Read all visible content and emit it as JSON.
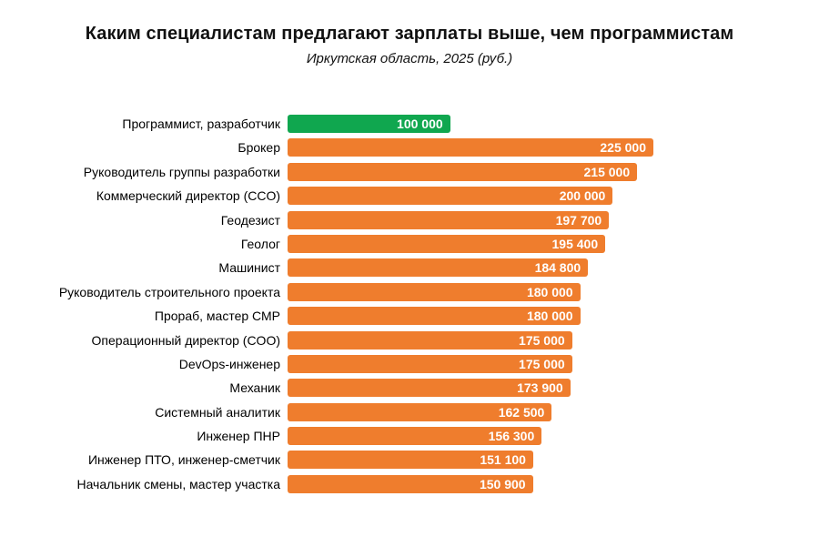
{
  "title": "Каким специалистам предлагают зарплаты выше, чем программистам",
  "subtitle": "Иркутская область, 2025 (руб.)",
  "colors": {
    "highlight_bar": "#10A74F",
    "default_bar": "#EF7D2D",
    "value_text": "#FFFFFF",
    "label_text": "#000000"
  },
  "chart_data": {
    "type": "bar",
    "orientation": "horizontal",
    "title": "Каким специалистам предлагают зарплаты выше, чем программистам",
    "subtitle": "Иркутская область, 2025 (руб.)",
    "xlabel": "",
    "ylabel": "",
    "xlim": [
      0,
      225000
    ],
    "grid": false,
    "legend": false,
    "highlight_index": 0,
    "categories": [
      "Программист, разработчик",
      "Брокер",
      "Руководитель группы разработки",
      "Коммерческий директор (CCO)",
      "Геодезист",
      "Геолог",
      "Машинист",
      "Руководитель строительного проекта",
      "Прораб, мастер СМР",
      "Операционный директор (COO)",
      "DevOps-инженер",
      "Механик",
      "Системный аналитик",
      "Инженер ПНР",
      "Инженер ПТО, инженер-сметчик",
      "Начальник смены, мастер участка"
    ],
    "values": [
      100000,
      225000,
      215000,
      200000,
      197700,
      195400,
      184800,
      180000,
      180000,
      175000,
      175000,
      173900,
      162500,
      156300,
      151100,
      150900
    ],
    "value_labels": [
      "100 000",
      "225 000",
      "215 000",
      "200 000",
      "197 700",
      "195 400",
      "184 800",
      "180 000",
      "180 000",
      "175 000",
      "175 000",
      "173 900",
      "162 500",
      "156 300",
      "151 100",
      "150 900"
    ]
  }
}
